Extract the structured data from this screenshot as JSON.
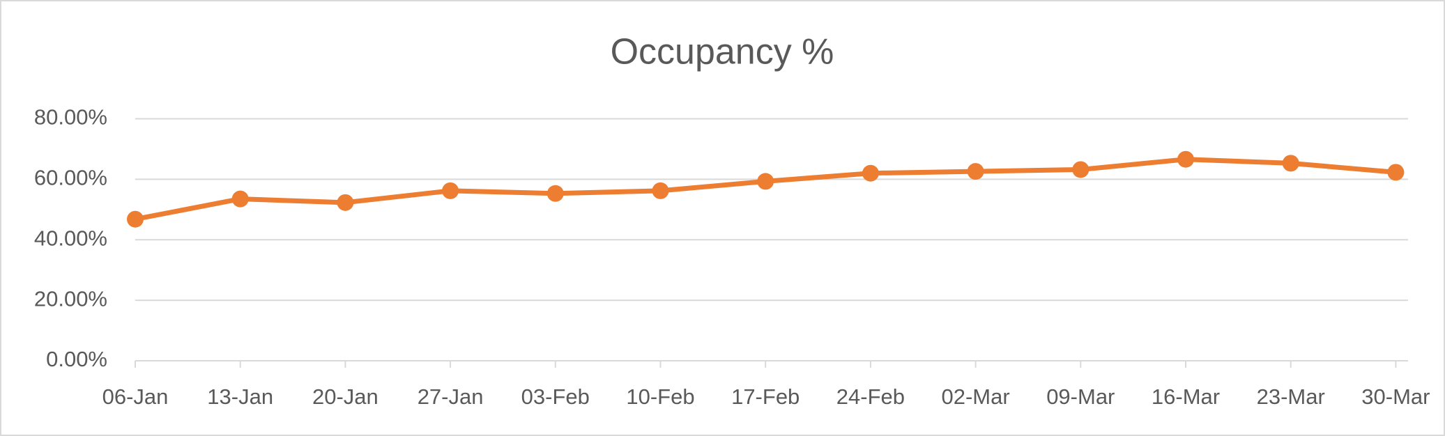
{
  "chart_data": {
    "type": "line",
    "title": "Occupancy %",
    "categories": [
      "06-Jan",
      "13-Jan",
      "20-Jan",
      "27-Jan",
      "03-Feb",
      "10-Feb",
      "17-Feb",
      "24-Feb",
      "02-Mar",
      "09-Mar",
      "16-Mar",
      "23-Mar",
      "30-Mar"
    ],
    "series": [
      {
        "name": "Occupancy %",
        "color": "#ed7d31",
        "values": [
          46.8,
          53.5,
          52.3,
          56.2,
          55.3,
          56.2,
          59.3,
          62.0,
          62.6,
          63.2,
          66.6,
          65.3,
          62.3
        ]
      }
    ],
    "ylim": [
      0,
      80
    ],
    "yticks": [
      {
        "value": 0,
        "label": "0.00%"
      },
      {
        "value": 20,
        "label": "20.00%"
      },
      {
        "value": 40,
        "label": "40.00%"
      },
      {
        "value": 60,
        "label": "60.00%"
      },
      {
        "value": 80,
        "label": "80.00%"
      }
    ],
    "grid": true
  }
}
